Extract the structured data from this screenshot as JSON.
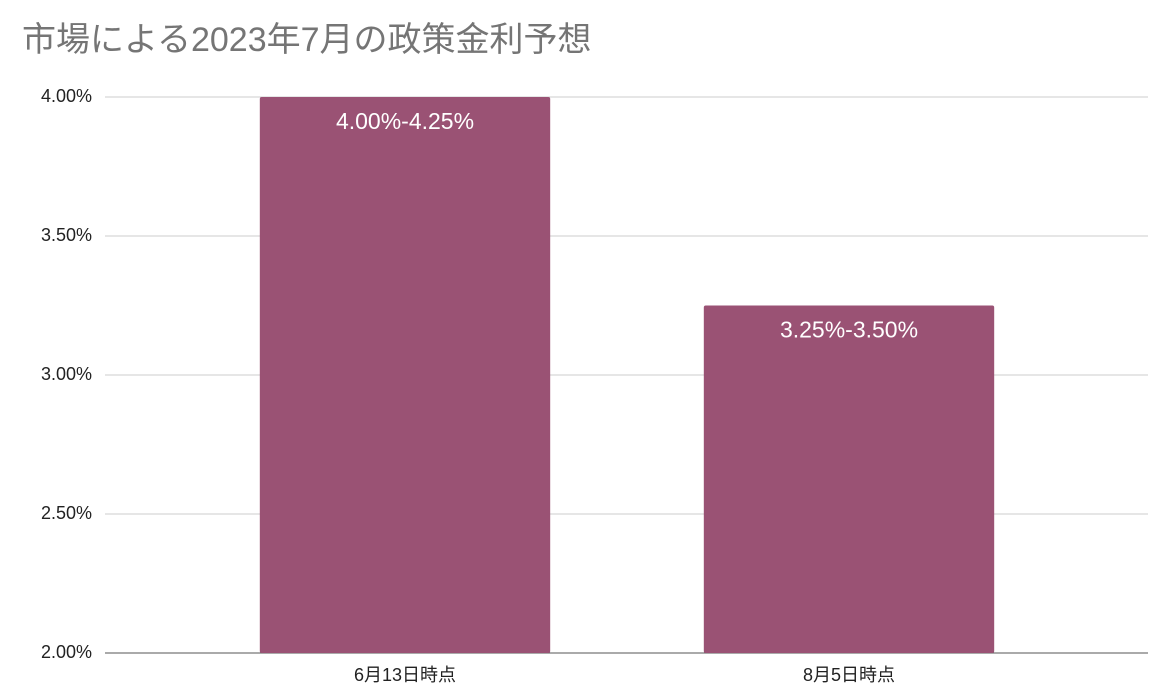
{
  "chart_data": {
    "type": "bar",
    "title": "市場による2023年7月の政策金利予想",
    "categories": [
      "6月13日時点",
      "8月5日時点"
    ],
    "values": [
      4.0,
      3.25
    ],
    "value_labels": [
      "4.00%-4.25%",
      "3.25%-3.50%"
    ],
    "color": "#9a5274",
    "ylim": [
      2,
      4
    ],
    "yticks": [
      {
        "value": 2,
        "label": "2.00%"
      },
      {
        "value": 2.5,
        "label": "2.50%"
      },
      {
        "value": 3,
        "label": "3.00%"
      },
      {
        "value": 3.5,
        "label": "3.50%"
      },
      {
        "value": 4,
        "label": "4.00%"
      }
    ],
    "grid": true
  }
}
